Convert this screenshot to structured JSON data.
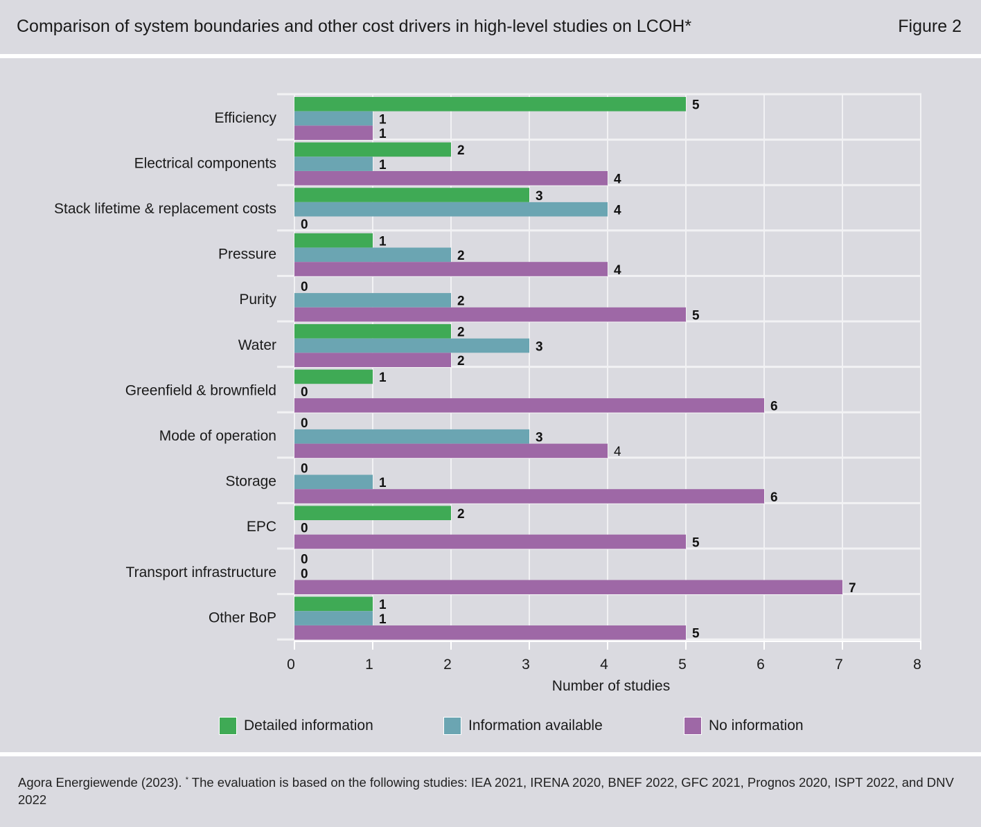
{
  "header": {
    "title": "Comparison of system boundaries and other cost drivers in high-level studies on LCOH*",
    "figure": "Figure 2"
  },
  "chart_data": {
    "type": "bar",
    "orientation": "horizontal",
    "categories": [
      "Efficiency",
      "Electrical components",
      "Stack lifetime & replacement costs",
      "Pressure",
      "Purity",
      "Water",
      "Greenfield & brownfield",
      "Mode of operation",
      "Storage",
      "EPC",
      "Transport infrastructure",
      "Other BoP"
    ],
    "series": [
      {
        "name": "Detailed information",
        "color": "#3faa55",
        "values": [
          5,
          2,
          3,
          1,
          0,
          2,
          1,
          0,
          0,
          2,
          0,
          1
        ]
      },
      {
        "name": "Information available",
        "color": "#6ba5b2",
        "values": [
          1,
          1,
          4,
          2,
          2,
          3,
          0,
          3,
          1,
          0,
          0,
          1
        ]
      },
      {
        "name": "No information",
        "color": "#9e68a6",
        "values": [
          1,
          4,
          0,
          4,
          5,
          2,
          6,
          4,
          6,
          5,
          7,
          5
        ]
      }
    ],
    "xlabel": "Number of studies",
    "xlim": [
      0,
      8
    ],
    "xticks": [
      0,
      1,
      2,
      3,
      4,
      5,
      6,
      7,
      8
    ],
    "grid": true,
    "legend_position": "bottom"
  },
  "footer": {
    "source": "Agora Energiewende (2023).",
    "mark": "*",
    "note": "The evaluation is based on the following studies: IEA 2021, IRENA 2020, BNEF 2022, GFC 2021, Prognos 2020, ISPT 2022, and DNV 2022"
  }
}
